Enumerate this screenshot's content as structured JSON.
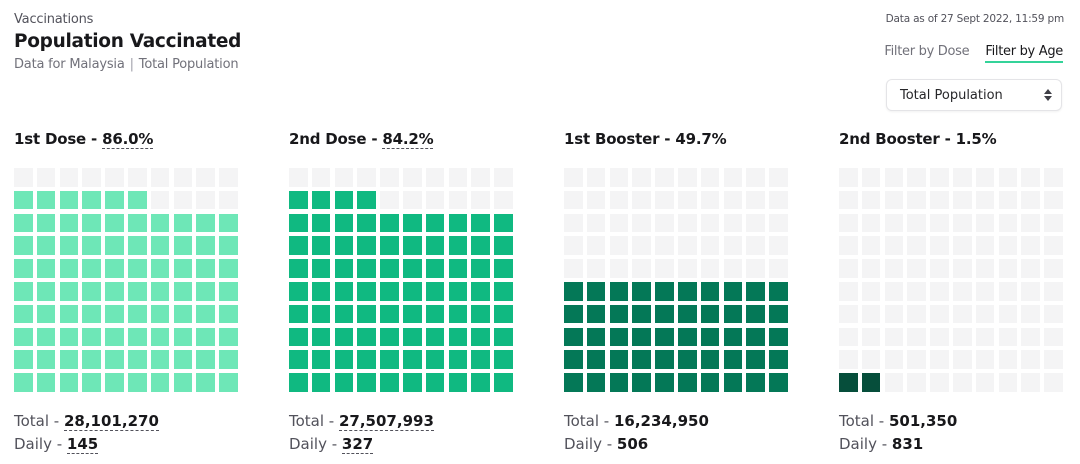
{
  "header": {
    "eyebrow": "Vaccinations",
    "title": "Population Vaccinated",
    "subtitle_left": "Data for Malaysia",
    "subtitle_sep": "|",
    "subtitle_right": "Total Population",
    "as_of": "Data as of 27 Sept 2022, 11:59 pm"
  },
  "filters": {
    "tabs": [
      "Filter by Dose",
      "Filter by Age"
    ],
    "active": "Filter by Age"
  },
  "select": {
    "value": "Total Population",
    "icon": "updown-icon"
  },
  "colors": {
    "empty": "#f4f4f5",
    "dose1": "#6ee7b7",
    "dose2": "#10b981",
    "booster1": "#047857",
    "booster2": "#064e3b"
  },
  "chart_data": {
    "type": "waffle",
    "grid": {
      "rows": 10,
      "cols": 10
    },
    "panels": [
      {
        "label": "1st Dose",
        "separator": " - ",
        "percent": 86.0,
        "percent_text": "86.0%",
        "percent_dotted": true,
        "total_label": "Total - ",
        "total": "28,101,270",
        "total_dotted": true,
        "daily_label": "Daily - ",
        "daily": "145",
        "daily_dotted": true,
        "color_key": "dose1"
      },
      {
        "label": "2nd Dose",
        "separator": " - ",
        "percent": 84.2,
        "percent_text": "84.2%",
        "percent_dotted": true,
        "total_label": "Total - ",
        "total": "27,507,993",
        "total_dotted": true,
        "daily_label": "Daily - ",
        "daily": "327",
        "daily_dotted": true,
        "color_key": "dose2"
      },
      {
        "label": "1st Booster",
        "separator": " - ",
        "percent": 49.7,
        "percent_text": "49.7%",
        "percent_dotted": false,
        "total_label": "Total - ",
        "total": "16,234,950",
        "total_dotted": false,
        "daily_label": "Daily - ",
        "daily": "506",
        "daily_dotted": false,
        "color_key": "booster1"
      },
      {
        "label": "2nd Booster",
        "separator": " - ",
        "percent": 1.5,
        "percent_text": "1.5%",
        "percent_dotted": false,
        "total_label": "Total - ",
        "total": "501,350",
        "total_dotted": false,
        "daily_label": "Daily - ",
        "daily": "831",
        "daily_dotted": false,
        "color_key": "booster2"
      }
    ]
  }
}
